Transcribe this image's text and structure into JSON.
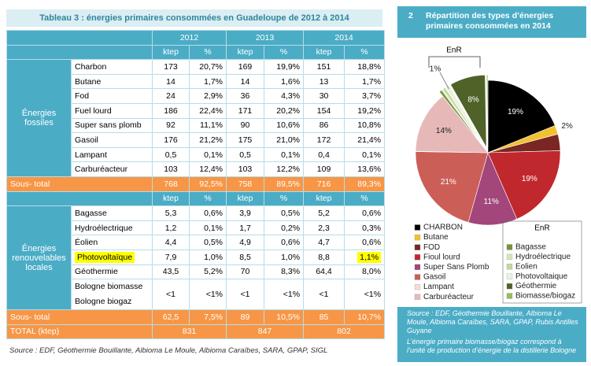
{
  "table": {
    "title": "Tableau 3 : énergies primaires consommées en Guadeloupe de 2012 à 2014",
    "years": [
      "2012",
      "2013",
      "2014"
    ],
    "units": [
      "ktep",
      "%"
    ],
    "sections": [
      {
        "label": "Énergies fossiles",
        "rows": [
          [
            "Charbon",
            "173",
            "20,7%",
            "169",
            "19,9%",
            "151",
            "18,8%"
          ],
          [
            "Butane",
            "14",
            "1,7%",
            "14",
            "1,6%",
            "13",
            "1,7%"
          ],
          [
            "Fod",
            "24",
            "2,9%",
            "36",
            "4,3%",
            "30",
            "3,7%"
          ],
          [
            "Fuel lourd",
            "186",
            "22,4%",
            "171",
            "20,2%",
            "154",
            "19,2%"
          ],
          [
            "Super sans plomb",
            "92",
            "11,1%",
            "90",
            "10,6%",
            "86",
            "10,8%"
          ],
          [
            "Gasoil",
            "176",
            "21,2%",
            "175",
            "21,0%",
            "172",
            "21,4%"
          ],
          [
            "Lampant",
            "0,5",
            "0,1%",
            "0,5",
            "0,1%",
            "0,4",
            "0,1%"
          ],
          [
            "Carburéacteur",
            "103",
            "12,4%",
            "103",
            "12,2%",
            "109",
            "13,6%"
          ]
        ],
        "subtotal": [
          "Sous- total",
          "768",
          "92,5%",
          "758",
          "89,5%",
          "716",
          "89,3%"
        ]
      },
      {
        "label": "Énergies renouvelables locales",
        "rows": [
          [
            "Bagasse",
            "5,3",
            "0,6%",
            "3,9",
            "0,5%",
            "5,2",
            "0,6%"
          ],
          [
            "Hydroélectrique",
            "1,2",
            "0,1%",
            "1,7",
            "0,2%",
            "2,3",
            "0,3%"
          ],
          [
            "Éolien",
            "4,4",
            "0,5%",
            "4,9",
            "0,6%",
            "4,7",
            "0,6%"
          ],
          [
            "Photovoltaïque",
            "7,9",
            "1,0%",
            "8,5",
            "1,0%",
            "8,8",
            "1,1%"
          ],
          [
            "Géothermie",
            "43,5",
            "5,2%",
            "70",
            "8,3%",
            "64,4",
            "8,0%"
          ],
          [
            [
              "Bologne biomasse",
              "Bologne biogaz"
            ],
            "<1",
            "<1%",
            "<1",
            "<1%",
            "<1",
            "<1%"
          ]
        ],
        "subtotal": [
          "Sous- total",
          "62,5",
          "7,5%",
          "89",
          "10,5%",
          "85",
          "10,7%"
        ]
      }
    ],
    "total": [
      "TOTAL (ktep)",
      "831",
      "847",
      "802"
    ],
    "source": "Source : EDF, Géothermie Bouillante, Albioma Le Moule, Albioma Caraïbes, SARA, GPAP, SIGL"
  },
  "figure": {
    "number": "2",
    "title": "Répartition des types d’énergies primaires consommées en 2014",
    "source": "Source : EDF, Géothermie Bouillante, Albioma Le Moule, Albioma Caraïbes, SARA, GPAP, Rubis Antilles Guyane",
    "note": "L’énergie primaire biomasse/biogaz correspond à l’unité de production d’énergie de la distillerie Bologne"
  },
  "chart_data": {
    "type": "pie",
    "groups": [
      {
        "categories": [
          "CHARBON",
          "Butane",
          "FOD",
          "Fioul lourd",
          "Super Sans Plomb",
          "Gasoil",
          "Lampant",
          "Carburéacteur"
        ],
        "colors": [
          "#000000",
          "#f2c12e",
          "#7a2622",
          "#c0282d",
          "#a3467c",
          "#cc5e58",
          "#f4dcdc",
          "#e6b9b8"
        ],
        "values": [
          19,
          2,
          3.7,
          19,
          11,
          21,
          0.1,
          14
        ],
        "value_labels": [
          "19%",
          "2%",
          null,
          "19%",
          "11%",
          "21%",
          null,
          "14%"
        ]
      },
      {
        "name": "EnR",
        "categories": [
          "Bagasse",
          "Hydroélectrique",
          "Eolien",
          "Photovoltaique",
          "Géothermie",
          "Biomasse/biogaz"
        ],
        "colors": [
          "#76923c",
          "#d7e4bd",
          "#c3d69b",
          "#ebf1de",
          "#4f6228",
          "#9bbb59"
        ],
        "values": [
          0.6,
          0.3,
          0.6,
          1,
          8,
          0.3
        ],
        "value_labels": [
          null,
          null,
          null,
          "1%",
          "8%",
          null
        ]
      }
    ]
  }
}
